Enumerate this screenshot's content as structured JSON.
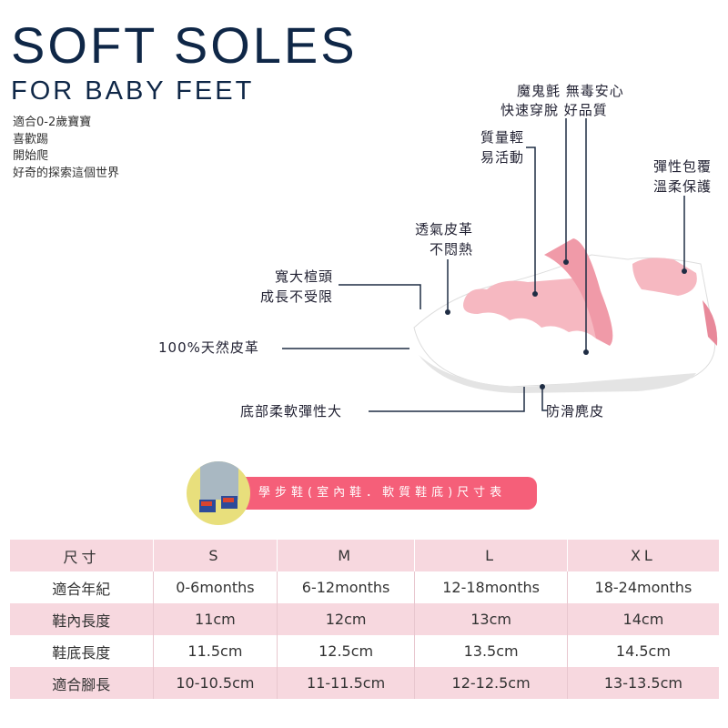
{
  "title": "SOFT SOLES",
  "subtitle": "FOR BABY FEET",
  "intro": [
    "適合0-2歲寶寶",
    "喜歡踢",
    "開始爬",
    "好奇的探索這個世界"
  ],
  "features": {
    "velcro": [
      "魔鬼氈 無毒安心",
      "快速穿脫 好品質"
    ],
    "light": [
      "質量輕",
      "易活動"
    ],
    "elastic": [
      "彈性包覆",
      "溫柔保護"
    ],
    "breathable": [
      "透氣皮革",
      "不悶熱"
    ],
    "toe": [
      "寬大楦頭",
      "成長不受限"
    ],
    "leather": "100%天然皮革",
    "sole": "底部柔軟彈性大",
    "suede": "防滑麂皮"
  },
  "banner": "學步鞋(室內鞋．軟質鞋底)尺寸表",
  "colors": {
    "navy": "#0f2747",
    "pink": "#f55f79",
    "row_pink": "#f7d8df"
  },
  "table": {
    "header": [
      "尺寸",
      "S",
      "M",
      "L",
      "XL"
    ],
    "rows": [
      [
        "適合年紀",
        "0-6months",
        "6-12months",
        "12-18months",
        "18-24months"
      ],
      [
        "鞋內長度",
        "11cm",
        "12cm",
        "13cm",
        "14cm"
      ],
      [
        "鞋底長度",
        "11.5cm",
        "12.5cm",
        "13.5cm",
        "14.5cm"
      ],
      [
        "適合腳長",
        "10-10.5cm",
        "11-11.5cm",
        "12-12.5cm",
        "13-13.5cm"
      ]
    ]
  }
}
